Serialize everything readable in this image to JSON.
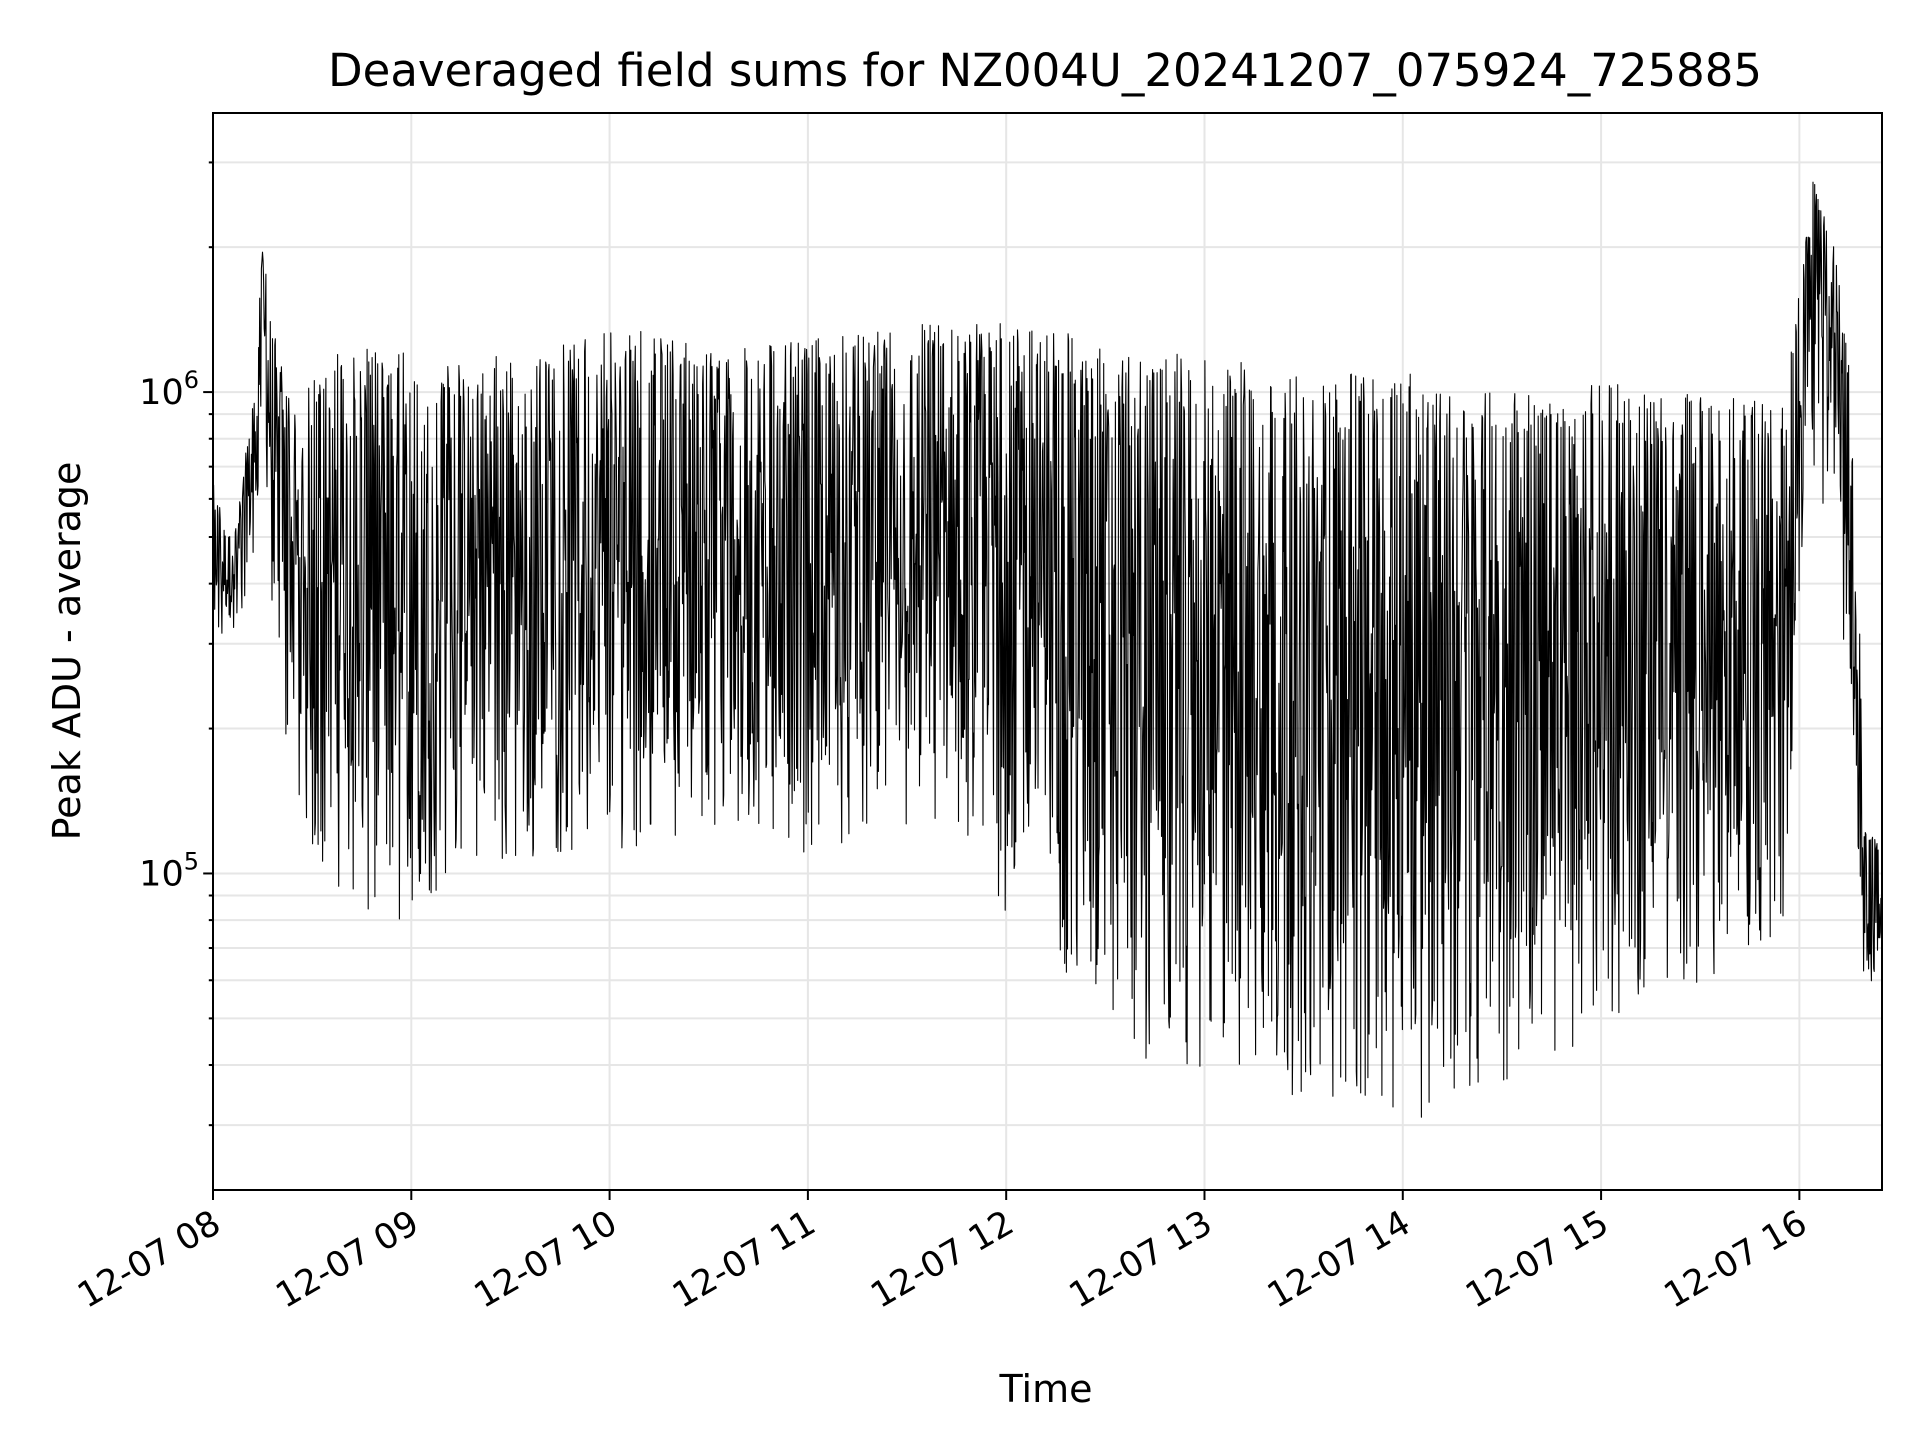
{
  "chart_data": {
    "type": "line",
    "title": "Deaveraged field sums for NZ004U_20241207_075924_725885",
    "xlabel": "Time",
    "ylabel": "Peak ADU - average",
    "yscale": "log",
    "ylim": [
      22000,
      3800000
    ],
    "xlim": [
      "2024-12-07 08:00",
      "2024-12-07 16:25"
    ],
    "x_tick_labels": [
      "12-07 08",
      "12-07 09",
      "12-07 10",
      "12-07 11",
      "12-07 12",
      "12-07 13",
      "12-07 14",
      "12-07 15",
      "12-07 16"
    ],
    "x_tick_times": [
      "2024-12-07 08:00",
      "2024-12-07 09:00",
      "2024-12-07 10:00",
      "2024-12-07 11:00",
      "2024-12-07 12:00",
      "2024-12-07 13:00",
      "2024-12-07 14:00",
      "2024-12-07 15:00",
      "2024-12-07 16:00"
    ],
    "y_major_ticks": [
      {
        "value": 100000,
        "base": "10",
        "exp": "5"
      },
      {
        "value": 1000000,
        "base": "10",
        "exp": "6"
      }
    ],
    "grid": true,
    "line_color": "#000000",
    "series": [
      {
        "x": [
          "2024-12-07 08:00",
          "2024-12-07 08:06",
          "2024-12-07 08:12",
          "2024-12-07 08:15",
          "2024-12-07 08:18",
          "2024-12-07 08:24",
          "2024-12-07 08:30",
          "2024-12-07 08:40",
          "2024-12-07 08:50",
          "2024-12-07 09:00",
          "2024-12-07 09:15",
          "2024-12-07 09:30",
          "2024-12-07 09:45",
          "2024-12-07 10:00",
          "2024-12-07 10:20",
          "2024-12-07 10:40",
          "2024-12-07 11:00",
          "2024-12-07 11:20",
          "2024-12-07 11:40",
          "2024-12-07 12:00",
          "2024-12-07 12:20",
          "2024-12-07 12:40",
          "2024-12-07 13:00",
          "2024-12-07 13:20",
          "2024-12-07 13:40",
          "2024-12-07 14:00",
          "2024-12-07 14:20",
          "2024-12-07 14:40",
          "2024-12-07 15:00",
          "2024-12-07 15:20",
          "2024-12-07 15:40",
          "2024-12-07 15:55",
          "2024-12-07 16:04",
          "2024-12-07 16:10",
          "2024-12-07 16:16",
          "2024-12-07 16:20",
          "2024-12-07 16:25"
        ],
        "y_high": [
          650000,
          480000,
          950000,
          2000000,
          1400000,
          900000,
          1100000,
          1250000,
          1250000,
          1200000,
          1150000,
          1200000,
          1250000,
          1400000,
          1300000,
          1250000,
          1300000,
          1350000,
          1500000,
          1400000,
          1350000,
          1200000,
          1200000,
          1150000,
          1100000,
          1100000,
          1050000,
          1000000,
          1050000,
          1000000,
          980000,
          950000,
          2800000,
          2200000,
          1000000,
          130000,
          110000
        ],
        "y_low": [
          300000,
          300000,
          400000,
          900000,
          300000,
          150000,
          110000,
          90000,
          70000,
          75000,
          110000,
          100000,
          110000,
          110000,
          120000,
          120000,
          110000,
          120000,
          120000,
          80000,
          60000,
          40000,
          38000,
          36000,
          32000,
          30000,
          34000,
          40000,
          45000,
          55000,
          65000,
          70000,
          700000,
          500000,
          180000,
          50000,
          75000
        ]
      }
    ]
  }
}
